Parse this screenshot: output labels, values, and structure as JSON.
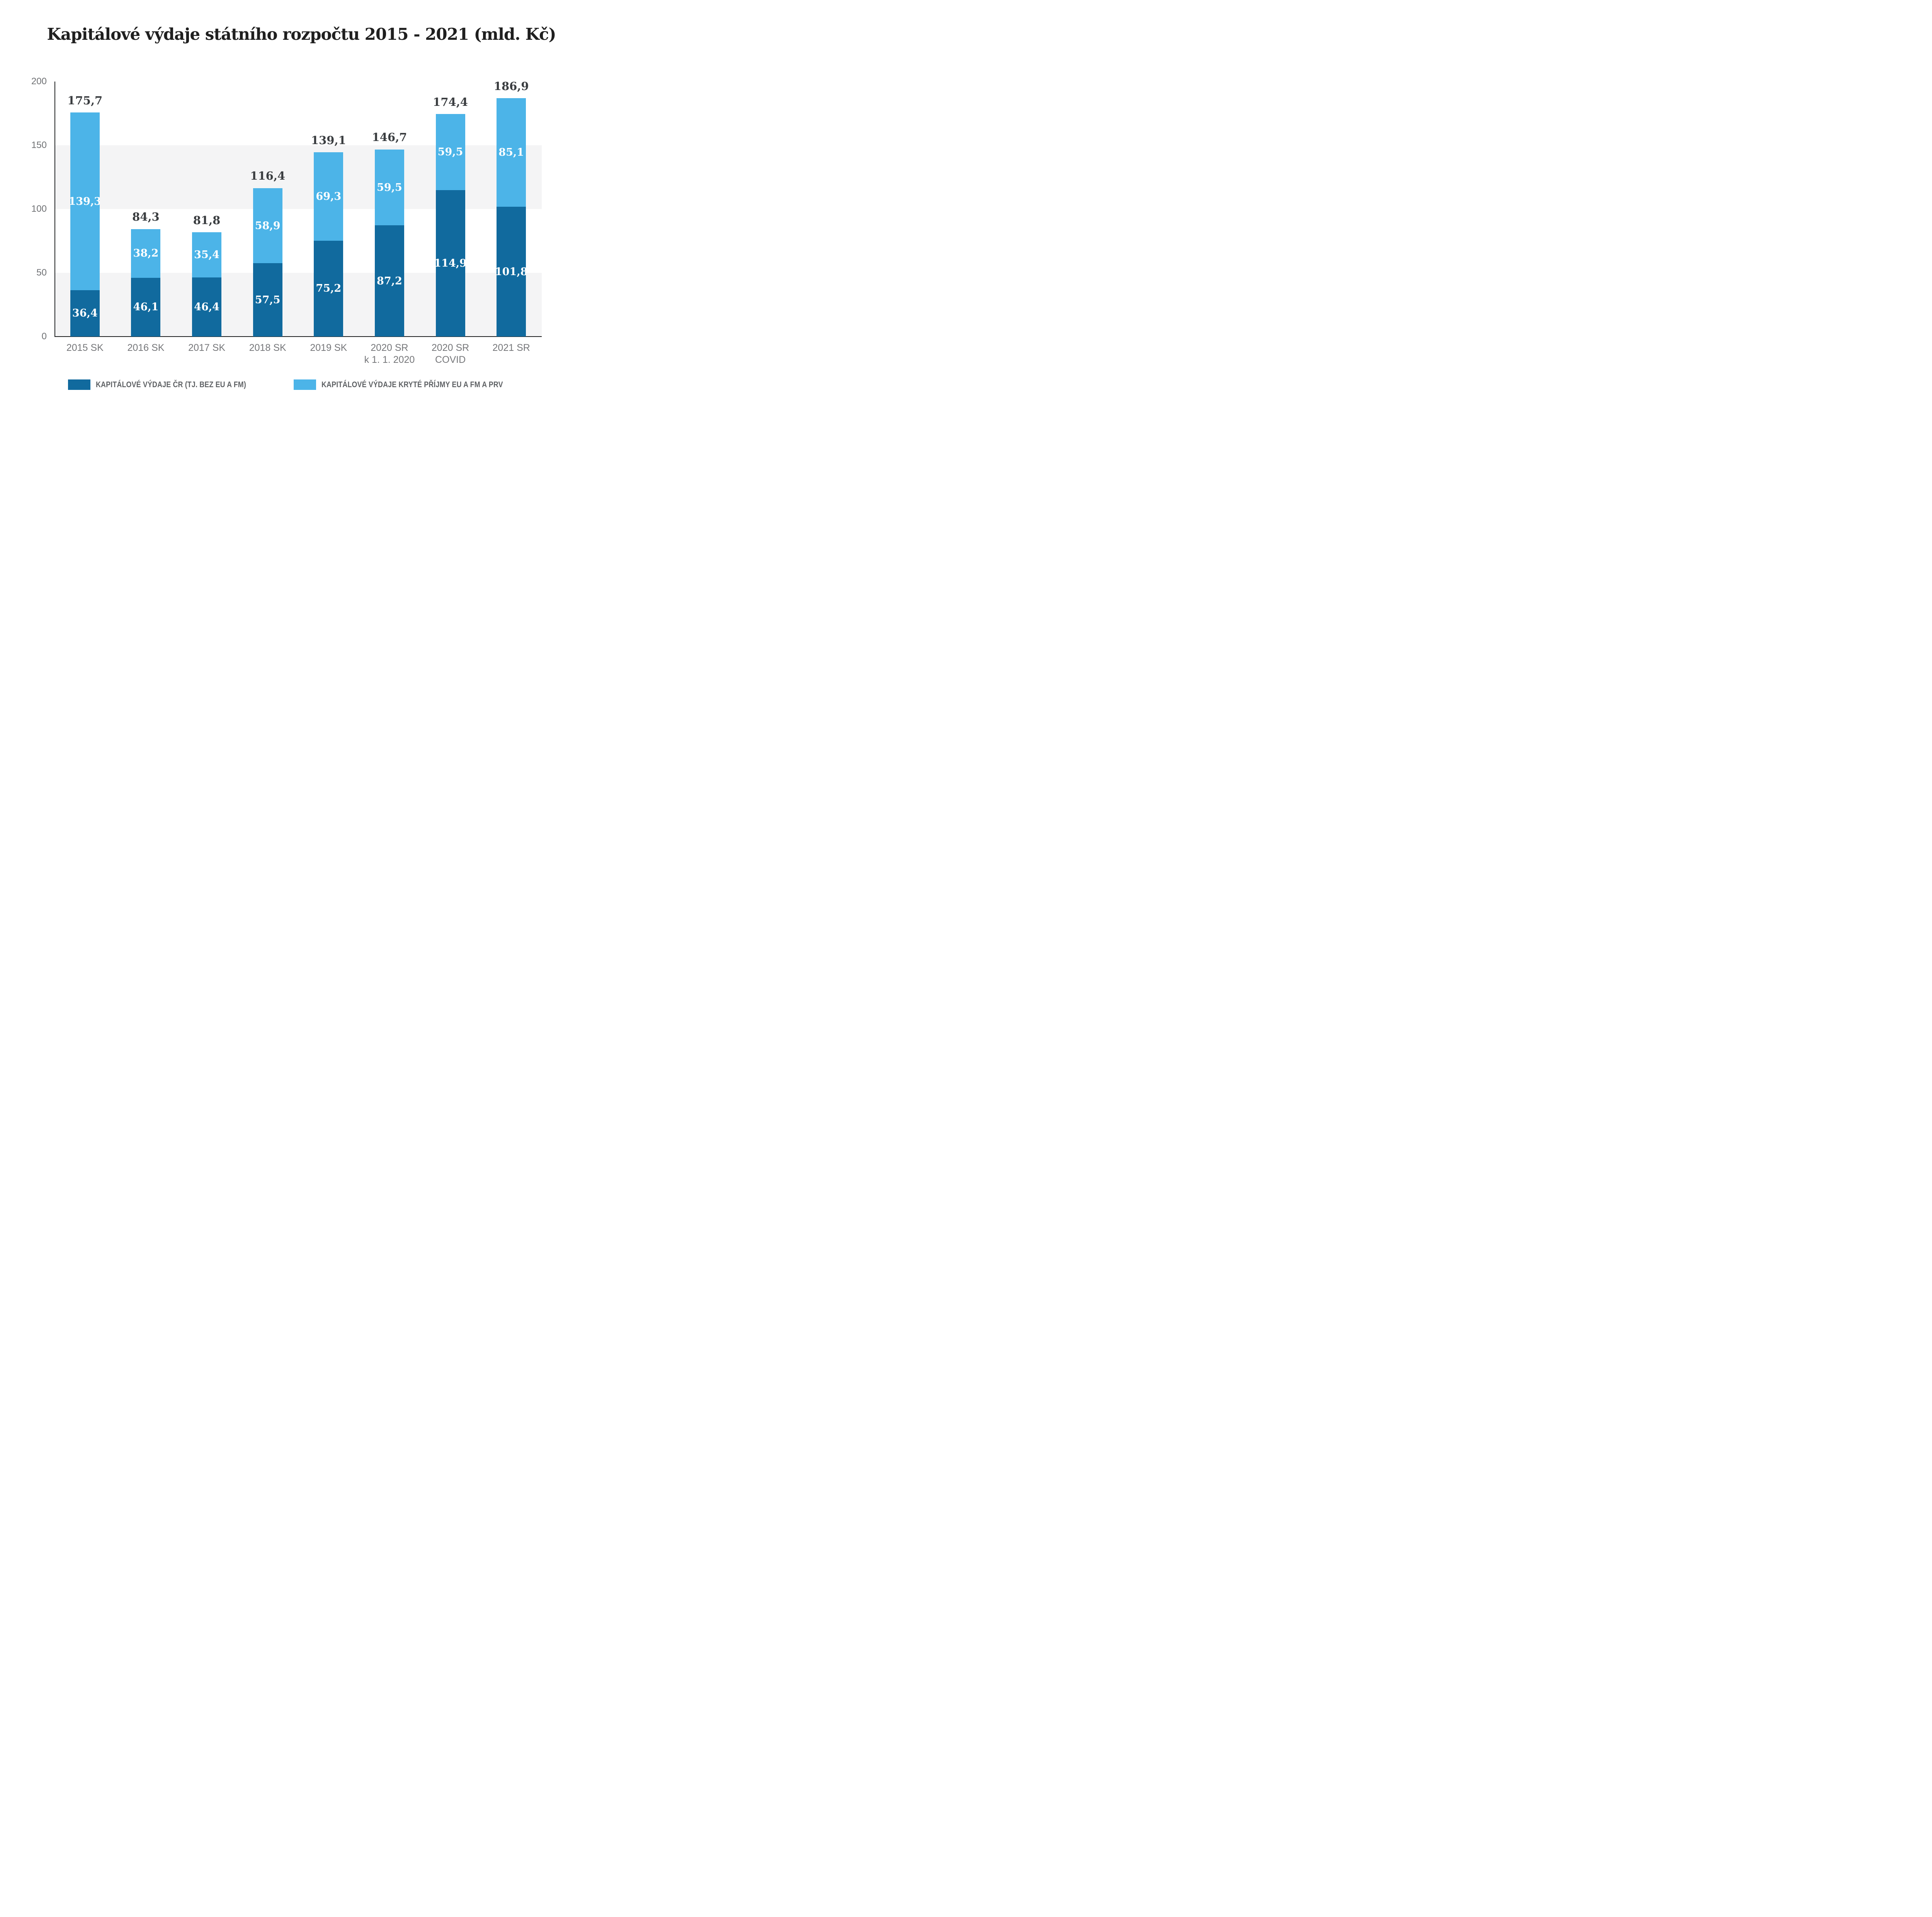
{
  "chart_data": {
    "type": "bar",
    "stacked": true,
    "title": "Kapitálové výdaje státního rozpočtu 2015 - 2021 (mld. Kč)",
    "categories": [
      [
        "2015 SK"
      ],
      [
        "2016 SK"
      ],
      [
        "2017 SK"
      ],
      [
        "2018 SK"
      ],
      [
        "2019 SK"
      ],
      [
        "2020 SR",
        "k 1. 1. 2020"
      ],
      [
        "2020 SR",
        "COVID"
      ],
      [
        "2021 SR"
      ]
    ],
    "series": [
      {
        "name": "KAPITÁLOVÉ VÝDAJE ČR (TJ. BEZ EU A FM)",
        "color": "#116a9e",
        "values": [
          36.4,
          46.1,
          46.4,
          57.5,
          75.2,
          87.2,
          114.9,
          101.8
        ],
        "labels": [
          "36,4",
          "46,1",
          "46,4",
          "57,5",
          "75,2",
          "87,2",
          "114,9",
          "101,8"
        ]
      },
      {
        "name": "KAPITÁLOVÉ VÝDAJE KRYTÉ PŘÍJMY EU A FM A PRV",
        "color": "#4cb4e8",
        "values": [
          139.3,
          38.2,
          35.4,
          58.9,
          69.3,
          59.5,
          59.5,
          85.1
        ],
        "labels": [
          "139,3",
          "38,2",
          "35,4",
          "58,9",
          "69,3",
          "59,5",
          "59,5",
          "85,1"
        ]
      }
    ],
    "totals": {
      "values": [
        175.7,
        84.3,
        81.8,
        116.4,
        139.1,
        146.7,
        174.4,
        186.9
      ],
      "labels": [
        "175,7",
        "84,3",
        "81,8",
        "116,4",
        "139,1",
        "146,7",
        "174,4",
        "186,9"
      ]
    },
    "y_axis": {
      "min": 0,
      "max": 200,
      "ticks": [
        200,
        150,
        100,
        50,
        0
      ],
      "tick_labels": [
        "200",
        "150",
        "100",
        "50",
        "0"
      ]
    },
    "legend_position": "bottom",
    "grid": "alternating horizontal gray bands between ticks"
  },
  "colors": {
    "background": "#ffffff",
    "series_dark": "#116a9e",
    "series_light": "#4cb4e8",
    "band_gray": "#f4f4f5",
    "axis_line": "#1d1f20",
    "title_text": "#1f1f1f",
    "total_label_text": "#3a3d40",
    "bar_value_label_text": "#ffffff",
    "y_tick_text": "#6f7174",
    "x_label_text": "#76777a",
    "legend_text": "#5e6164"
  }
}
